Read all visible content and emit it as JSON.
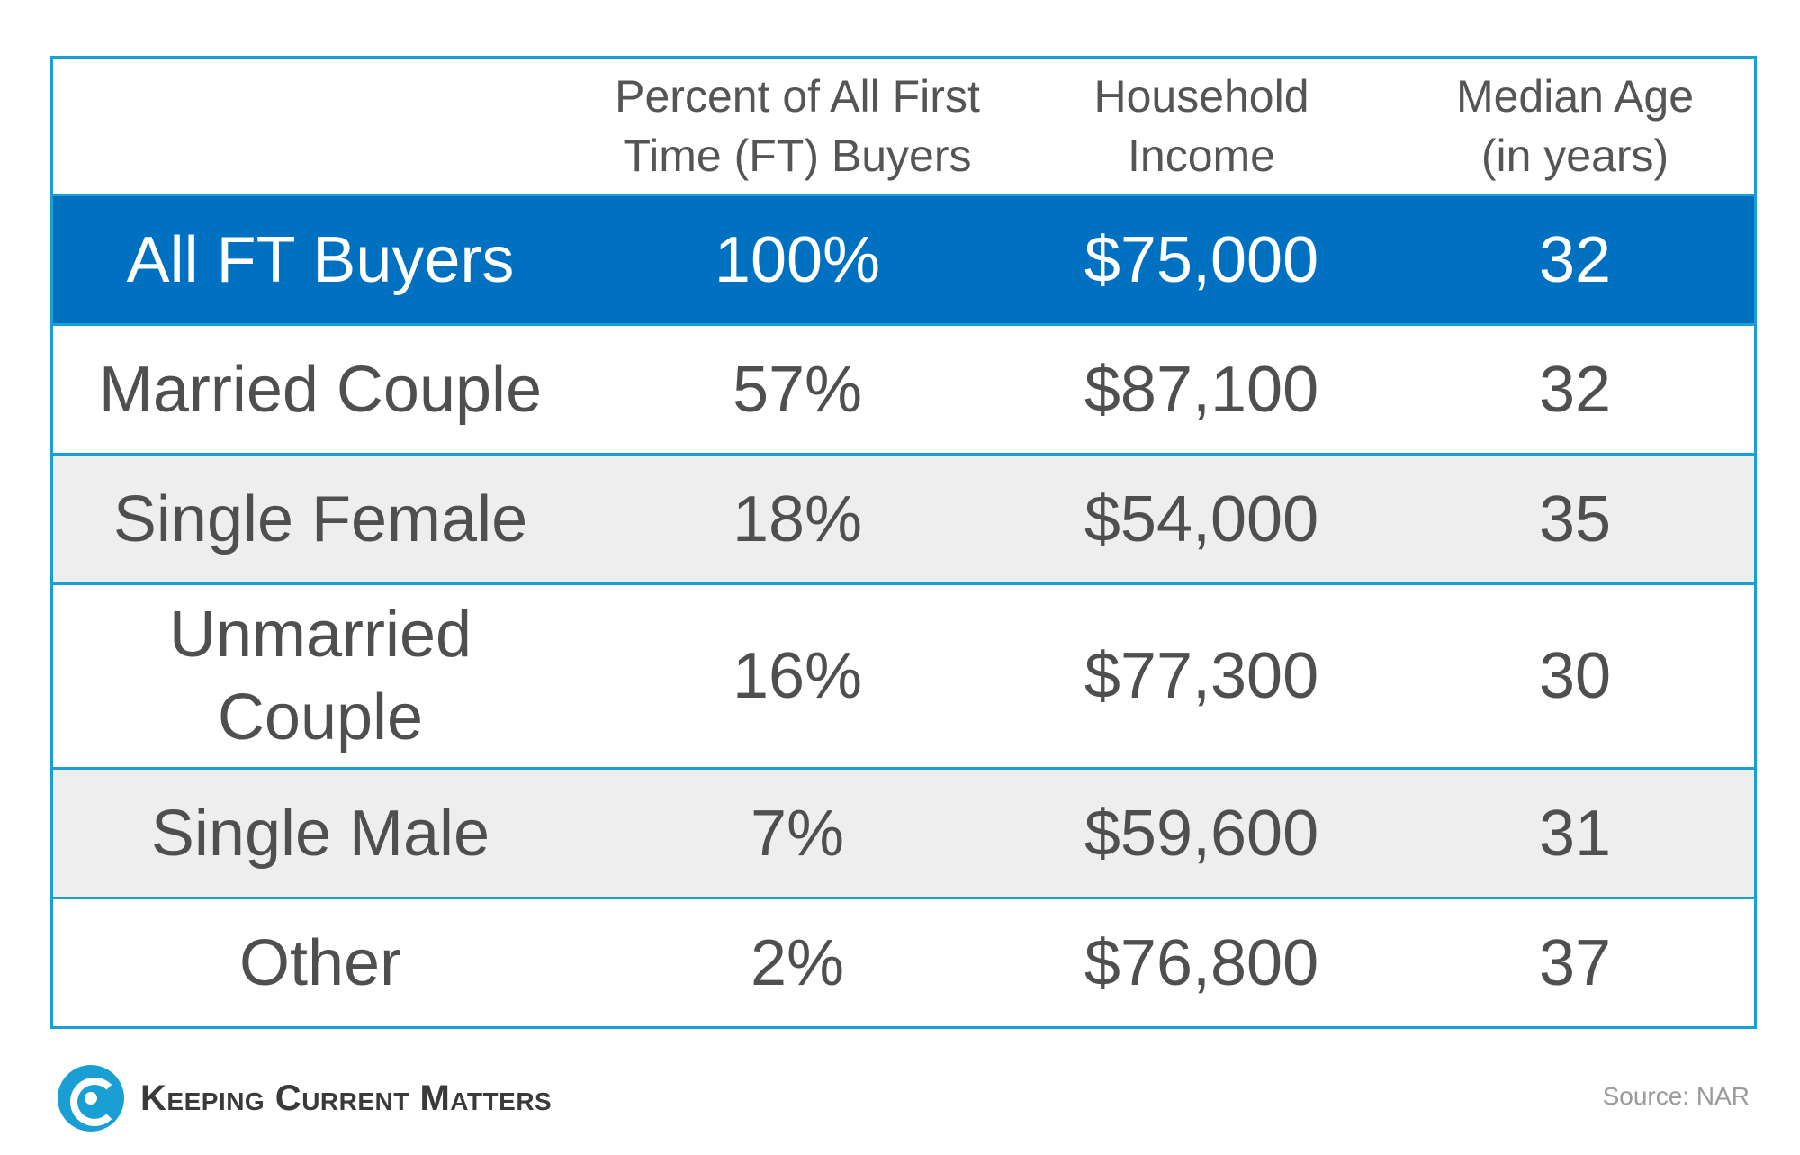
{
  "chart_data": {
    "type": "table",
    "columns": [
      "",
      "Percent of All First Time (FT) Buyers",
      "Household Income",
      "Median Age (in years)"
    ],
    "rows": [
      {
        "label": "All FT Buyers",
        "percent": "100%",
        "income": "$75,000",
        "age": "32"
      },
      {
        "label": "Married Couple",
        "percent": "57%",
        "income": "$87,100",
        "age": "32"
      },
      {
        "label": "Single Female",
        "percent": "18%",
        "income": "$54,000",
        "age": "35"
      },
      {
        "label": "Unmarried Couple",
        "percent": "16%",
        "income": "$77,300",
        "age": "30"
      },
      {
        "label": "Single Male",
        "percent": "7%",
        "income": "$59,600",
        "age": "31"
      },
      {
        "label": "Other",
        "percent": "2%",
        "income": "$76,800",
        "age": "37"
      }
    ]
  },
  "footer": {
    "logo_text": "Keeping Current Matters",
    "source": "Source: NAR"
  },
  "colors": {
    "highlight_row": "#0070c0",
    "border": "#1a9fd4",
    "shaded_row": "#eeeeee",
    "text": "#4f4f4f"
  }
}
